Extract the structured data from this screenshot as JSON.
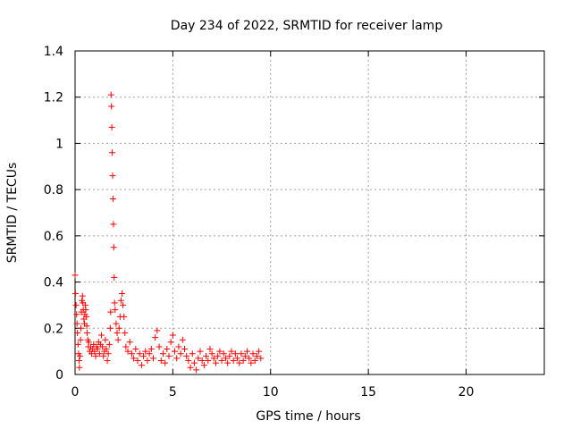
{
  "chart_data": {
    "type": "scatter",
    "title": "Day 234 of 2022, SRMTID for receiver lamp",
    "xlabel": "GPS time / hours",
    "ylabel": "SRMTID / TECUs",
    "xlim": [
      0,
      24
    ],
    "ylim": [
      0,
      1.4
    ],
    "xticks": [
      0,
      5,
      10,
      15,
      20
    ],
    "yticks": [
      0,
      0.2,
      0.4,
      0.6,
      0.8,
      1,
      1.2,
      1.4
    ],
    "ytick_labels": [
      "0",
      "0.2",
      "0.4",
      "0.6",
      "0.8",
      "1",
      "1.2",
      "1.4"
    ],
    "grid": true,
    "marker": "+",
    "series": [
      {
        "name": "SRMTID",
        "color": "#ff0000",
        "points": [
          [
            0.0,
            0.43
          ],
          [
            0.02,
            0.35
          ],
          [
            0.05,
            0.3
          ],
          [
            0.08,
            0.26
          ],
          [
            0.1,
            0.22
          ],
          [
            0.12,
            0.18
          ],
          [
            0.15,
            0.13
          ],
          [
            0.18,
            0.09
          ],
          [
            0.2,
            0.06
          ],
          [
            0.22,
            0.03
          ],
          [
            0.25,
            0.08
          ],
          [
            0.28,
            0.15
          ],
          [
            0.3,
            0.2
          ],
          [
            0.32,
            0.27
          ],
          [
            0.35,
            0.32
          ],
          [
            0.38,
            0.34
          ],
          [
            0.4,
            0.31
          ],
          [
            0.42,
            0.28
          ],
          [
            0.45,
            0.24
          ],
          [
            0.48,
            0.22
          ],
          [
            0.5,
            0.26
          ],
          [
            0.52,
            0.3
          ],
          [
            0.55,
            0.28
          ],
          [
            0.58,
            0.25
          ],
          [
            0.6,
            0.21
          ],
          [
            0.62,
            0.18
          ],
          [
            0.65,
            0.15
          ],
          [
            0.68,
            0.12
          ],
          [
            0.7,
            0.14
          ],
          [
            0.75,
            0.1
          ],
          [
            0.8,
            0.12
          ],
          [
            0.85,
            0.09
          ],
          [
            0.9,
            0.11
          ],
          [
            0.95,
            0.13
          ],
          [
            1.0,
            0.1
          ],
          [
            1.05,
            0.08
          ],
          [
            1.1,
            0.12
          ],
          [
            1.15,
            0.11
          ],
          [
            1.2,
            0.14
          ],
          [
            1.25,
            0.09
          ],
          [
            1.3,
            0.13
          ],
          [
            1.35,
            0.17
          ],
          [
            1.4,
            0.12
          ],
          [
            1.45,
            0.08
          ],
          [
            1.5,
            0.1
          ],
          [
            1.55,
            0.15
          ],
          [
            1.6,
            0.11
          ],
          [
            1.65,
            0.06
          ],
          [
            1.7,
            0.09
          ],
          [
            1.75,
            0.13
          ],
          [
            1.8,
            0.2
          ],
          [
            1.82,
            0.27
          ],
          [
            1.84,
            1.21
          ],
          [
            1.86,
            1.16
          ],
          [
            1.88,
            1.07
          ],
          [
            1.9,
            0.96
          ],
          [
            1.92,
            0.86
          ],
          [
            1.94,
            0.76
          ],
          [
            1.96,
            0.65
          ],
          [
            1.98,
            0.55
          ],
          [
            2.0,
            0.42
          ],
          [
            2.02,
            0.31
          ],
          [
            2.05,
            0.28
          ],
          [
            2.1,
            0.22
          ],
          [
            2.15,
            0.18
          ],
          [
            2.2,
            0.15
          ],
          [
            2.25,
            0.2
          ],
          [
            2.3,
            0.25
          ],
          [
            2.35,
            0.32
          ],
          [
            2.4,
            0.35
          ],
          [
            2.45,
            0.3
          ],
          [
            2.5,
            0.25
          ],
          [
            2.55,
            0.18
          ],
          [
            2.6,
            0.12
          ],
          [
            2.7,
            0.1
          ],
          [
            2.8,
            0.14
          ],
          [
            2.9,
            0.09
          ],
          [
            3.0,
            0.07
          ],
          [
            3.1,
            0.11
          ],
          [
            3.2,
            0.06
          ],
          [
            3.3,
            0.09
          ],
          [
            3.4,
            0.04
          ],
          [
            3.5,
            0.08
          ],
          [
            3.6,
            0.1
          ],
          [
            3.7,
            0.06
          ],
          [
            3.8,
            0.09
          ],
          [
            3.9,
            0.11
          ],
          [
            4.0,
            0.07
          ],
          [
            4.1,
            0.16
          ],
          [
            4.2,
            0.19
          ],
          [
            4.3,
            0.12
          ],
          [
            4.4,
            0.06
          ],
          [
            4.5,
            0.09
          ],
          [
            4.6,
            0.05
          ],
          [
            4.7,
            0.11
          ],
          [
            4.8,
            0.08
          ],
          [
            4.9,
            0.14
          ],
          [
            5.0,
            0.17
          ],
          [
            5.1,
            0.1
          ],
          [
            5.2,
            0.07
          ],
          [
            5.3,
            0.12
          ],
          [
            5.4,
            0.09
          ],
          [
            5.5,
            0.15
          ],
          [
            5.6,
            0.11
          ],
          [
            5.7,
            0.08
          ],
          [
            5.8,
            0.06
          ],
          [
            5.9,
            0.03
          ],
          [
            6.0,
            0.09
          ],
          [
            6.1,
            0.05
          ],
          [
            6.2,
            0.02
          ],
          [
            6.3,
            0.07
          ],
          [
            6.4,
            0.1
          ],
          [
            6.5,
            0.06
          ],
          [
            6.6,
            0.04
          ],
          [
            6.7,
            0.08
          ],
          [
            6.8,
            0.06
          ],
          [
            6.9,
            0.11
          ],
          [
            7.0,
            0.09
          ],
          [
            7.1,
            0.07
          ],
          [
            7.2,
            0.05
          ],
          [
            7.3,
            0.08
          ],
          [
            7.4,
            0.1
          ],
          [
            7.5,
            0.06
          ],
          [
            7.6,
            0.09
          ],
          [
            7.7,
            0.07
          ],
          [
            7.8,
            0.05
          ],
          [
            7.9,
            0.08
          ],
          [
            8.0,
            0.1
          ],
          [
            8.1,
            0.06
          ],
          [
            8.2,
            0.09
          ],
          [
            8.3,
            0.07
          ],
          [
            8.4,
            0.05
          ],
          [
            8.5,
            0.09
          ],
          [
            8.6,
            0.06
          ],
          [
            8.7,
            0.08
          ],
          [
            8.8,
            0.1
          ],
          [
            8.9,
            0.07
          ],
          [
            9.0,
            0.05
          ],
          [
            9.1,
            0.09
          ],
          [
            9.2,
            0.06
          ],
          [
            9.3,
            0.08
          ],
          [
            9.4,
            0.1
          ],
          [
            9.5,
            0.07
          ]
        ]
      }
    ]
  }
}
